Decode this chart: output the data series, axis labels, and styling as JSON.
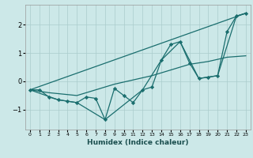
{
  "xlabel": "Humidex (Indice chaleur)",
  "background_color": "#cce8e8",
  "grid_color": "#aacccc",
  "line_color": "#1a6e6e",
  "xlim": [
    -0.5,
    23.5
  ],
  "ylim": [
    -1.7,
    2.7
  ],
  "yticks": [
    -1,
    0,
    1,
    2
  ],
  "xticks": [
    0,
    1,
    2,
    3,
    4,
    5,
    6,
    7,
    8,
    9,
    10,
    11,
    12,
    13,
    14,
    15,
    16,
    17,
    18,
    19,
    20,
    21,
    22,
    23
  ],
  "series_main": {
    "x": [
      0,
      1,
      2,
      3,
      4,
      5,
      6,
      7,
      8,
      9,
      10,
      11,
      12,
      13,
      14,
      15,
      16,
      17,
      18,
      19,
      20,
      21,
      22,
      23
    ],
    "y": [
      -0.3,
      -0.3,
      -0.55,
      -0.65,
      -0.7,
      -0.75,
      -0.55,
      -0.6,
      -1.35,
      -0.25,
      -0.5,
      -0.75,
      -0.3,
      -0.2,
      0.75,
      1.3,
      1.4,
      0.65,
      0.1,
      0.15,
      0.2,
      1.75,
      2.3,
      2.4
    ]
  },
  "series_straight": {
    "x": [
      0,
      23
    ],
    "y": [
      -0.3,
      2.4
    ]
  },
  "series_subset1": {
    "x": [
      0,
      3,
      5,
      8,
      12,
      14,
      16,
      18,
      20,
      22,
      23
    ],
    "y": [
      -0.3,
      -0.65,
      -0.75,
      -1.35,
      -0.3,
      0.75,
      1.4,
      0.1,
      0.2,
      2.3,
      2.4
    ]
  },
  "series_smooth": {
    "x": [
      0,
      2,
      5,
      9,
      13,
      17,
      19,
      21,
      23
    ],
    "y": [
      -0.3,
      -0.4,
      -0.5,
      -0.1,
      0.2,
      0.6,
      0.7,
      0.85,
      0.9
    ]
  }
}
